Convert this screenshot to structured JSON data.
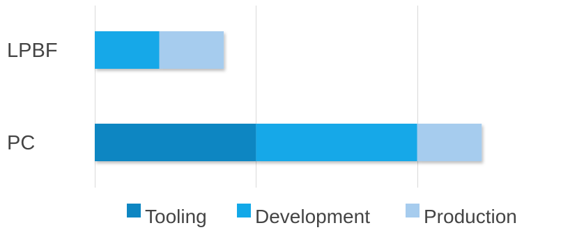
{
  "chart_data": {
    "type": "bar",
    "orientation": "horizontal",
    "stacked": true,
    "categories": [
      "LPBF",
      "PC"
    ],
    "series": [
      {
        "name": "Tooling",
        "values": [
          0,
          1.0
        ],
        "color": "#0E86C2"
      },
      {
        "name": "Development",
        "values": [
          0.4,
          1.0
        ],
        "color": "#12A8E8"
      },
      {
        "name": "Production",
        "values": [
          0.4,
          0.4
        ],
        "color": "#A6CCEE"
      }
    ],
    "xlim": [
      0,
      3
    ],
    "grid": "vertical",
    "legend_position": "bottom",
    "title": "",
    "xlabel": "",
    "ylabel": ""
  }
}
